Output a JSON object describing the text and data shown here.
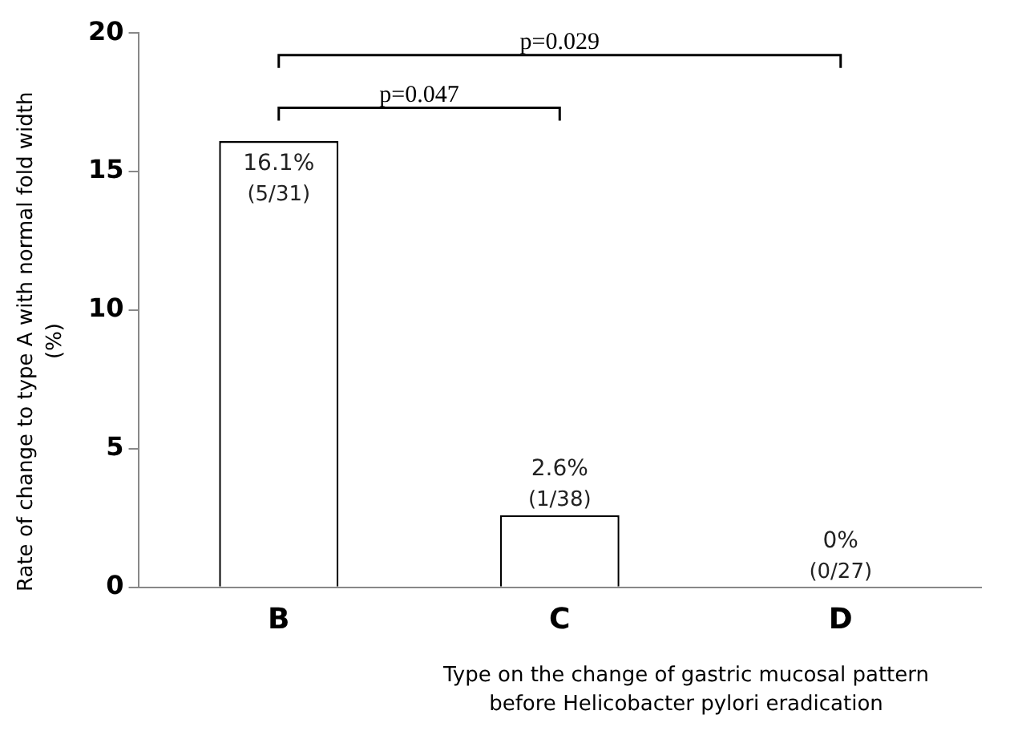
{
  "chart_data": {
    "type": "bar",
    "xlabel": "Type on the change of gastric mucosal pattern before Helicobacter pylori eradication",
    "ylabel": "Rate of change to type A with normal fold width (%)",
    "categories": [
      "B",
      "C",
      "D"
    ],
    "values": [
      16.1,
      2.6,
      0
    ],
    "value_labels": [
      "16.1%\n(5/31)",
      "2.6%\n(1/38)",
      "0%\n(0/27)"
    ],
    "color": "#ffffff",
    "ylim": [
      0,
      20
    ],
    "yticks": [
      0,
      5,
      10,
      15,
      20
    ],
    "grid": false,
    "legend": false,
    "annotations": [
      "p=0.029",
      "p=0.047"
    ]
  }
}
